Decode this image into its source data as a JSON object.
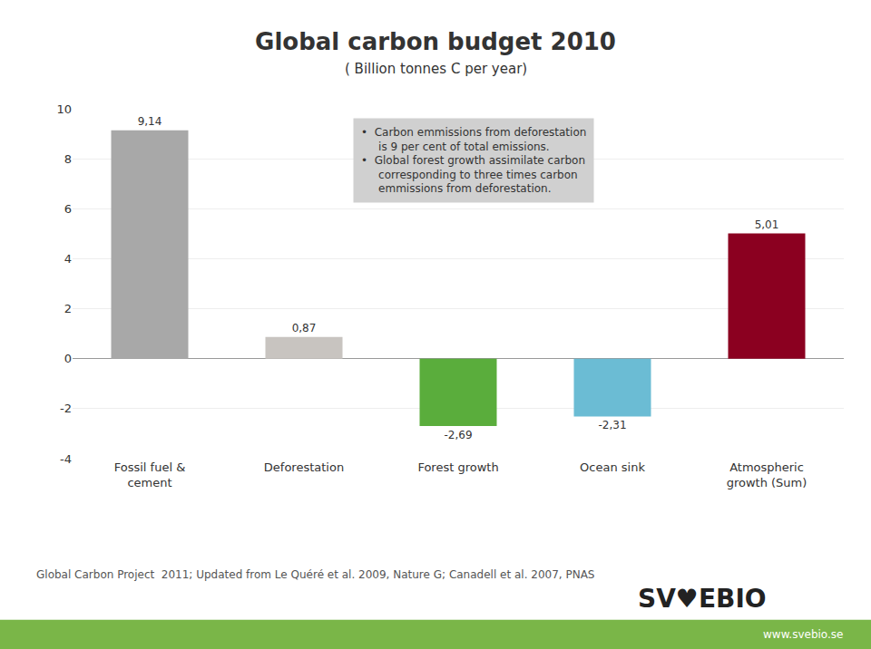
{
  "chart_data": {
    "type": "bar",
    "title": "Global carbon budget 2010",
    "subtitle": "( Billion tonnes C per year)",
    "categories": [
      "Fossil fuel &\ncement",
      "Deforestation",
      "Forest growth",
      "Ocean sink",
      "Atmospheric\ngrowth (Sum)"
    ],
    "values": [
      9.14,
      0.87,
      -2.69,
      -2.31,
      5.01
    ],
    "value_labels": [
      "9,14",
      "0,87",
      "-2,69",
      "-2,31",
      "5,01"
    ],
    "data_labels": true,
    "colors": [
      "#a8a8a8",
      "#c8c4c0",
      "#5aad3c",
      "#6bbcd4",
      "#8b0020"
    ],
    "ylim": [
      -4,
      10
    ],
    "yticks": [
      -4,
      -2,
      0,
      2,
      4,
      6,
      8,
      10
    ],
    "grid": true,
    "annotations": [
      "•  Carbon emmissions from deforestation",
      "    is 9 per cent of total emissions.",
      "•  Global forest growth assimilate carbon",
      "    corresponding to three times carbon",
      "    emmissions from deforestation."
    ],
    "source": "Global Carbon Project  2011; Updated from Le Quéré et al. 2009, Nature G; Canadell et al. 2007, PNAS",
    "website": "www.svebio.se",
    "logo": "SV♥EBIO"
  }
}
